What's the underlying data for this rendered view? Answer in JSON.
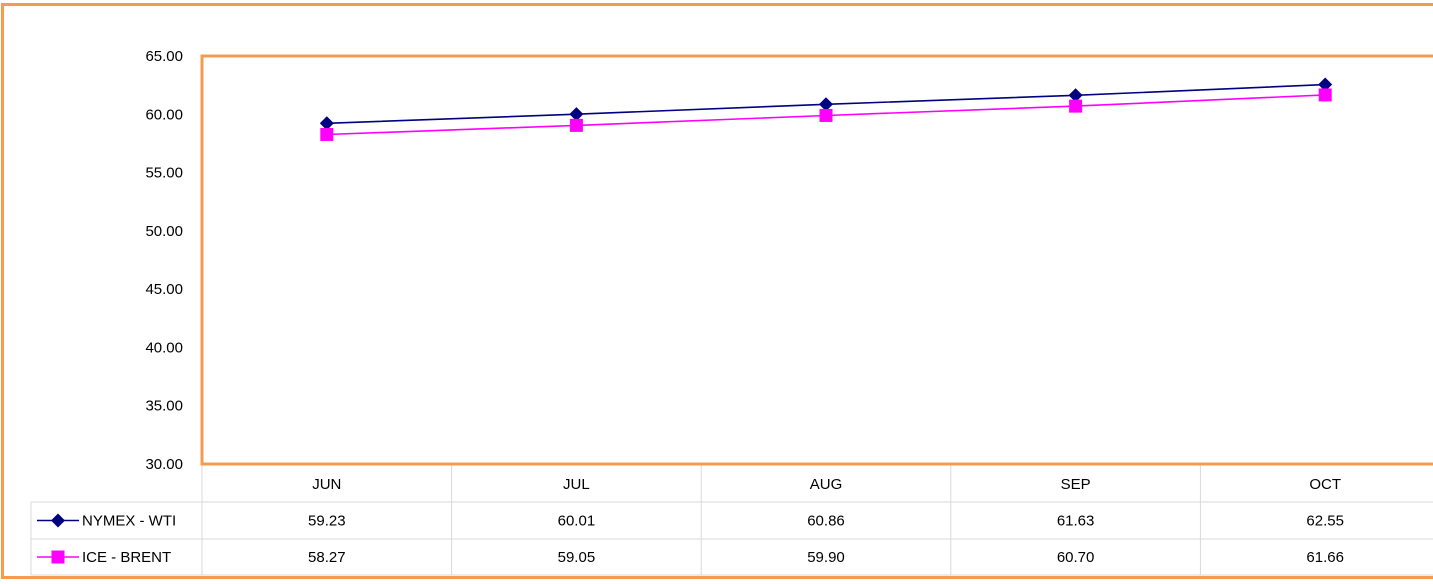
{
  "chart_data": {
    "type": "line",
    "categories": [
      "JUN",
      "JUL",
      "AUG",
      "SEP",
      "OCT"
    ],
    "series": [
      {
        "name": "NYMEX - WTI",
        "values": [
          59.23,
          60.01,
          60.86,
          61.63,
          62.55
        ],
        "display": [
          "59.23",
          "60.01",
          "60.86",
          "61.63",
          "62.55"
        ],
        "color": "#000080",
        "marker": "diamond"
      },
      {
        "name": "ICE - BRENT",
        "values": [
          58.27,
          59.05,
          59.9,
          60.7,
          61.66
        ],
        "display": [
          "58.27",
          "59.05",
          "59.90",
          "60.70",
          "61.66"
        ],
        "color": "#FF00FF",
        "marker": "square"
      }
    ],
    "ylim": [
      30,
      65
    ],
    "yticks": [
      "30.00",
      "35.00",
      "40.00",
      "45.00",
      "50.00",
      "55.00",
      "60.00",
      "65.00"
    ],
    "grid": false,
    "legend": "data-table",
    "plot_border_color": "#F39C50",
    "frame_color": "#F39C50"
  }
}
